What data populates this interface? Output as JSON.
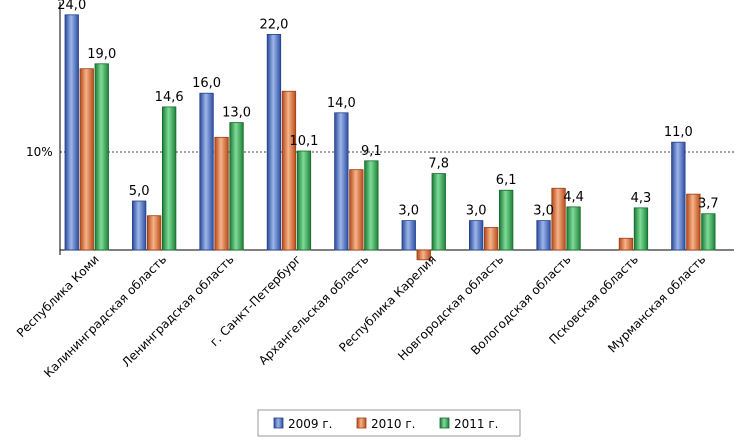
{
  "chart_data": {
    "type": "bar",
    "title": "",
    "xlabel": "",
    "ylabel": "",
    "reference_line": {
      "value": 10,
      "label": "10%"
    },
    "categories": [
      "Республика Коми",
      "Калининградская область",
      "Ленинградская область",
      "г. Санкт-Петербург",
      "Архангельская область",
      "Республика Карелия",
      "Новгородская область",
      "Вологодская область",
      "Псковская область",
      "Мурманская область"
    ],
    "series": [
      {
        "name": "2009 г.",
        "color": "#4472C4",
        "values": [
          24.0,
          5.0,
          16.0,
          22.0,
          14.0,
          3.0,
          3.0,
          3.0,
          null,
          11.0
        ],
        "labels": [
          "24,0",
          "5,0",
          "16,0",
          "22,0",
          "14,0",
          "3,0",
          "3,0",
          "3,0",
          "",
          "11,0"
        ]
      },
      {
        "name": "2010 г.",
        "color": "#C0504D",
        "values": [
          18.5,
          3.5,
          11.5,
          16.2,
          8.2,
          -1.0,
          2.3,
          6.3,
          1.2,
          5.7
        ],
        "labels": [
          "",
          "",
          "",
          "",
          "",
          "",
          "",
          "",
          "",
          ""
        ]
      },
      {
        "name": "2011 г.",
        "color": "#2E9A4A",
        "values": [
          19.0,
          14.6,
          13.0,
          10.1,
          9.1,
          7.8,
          6.1,
          4.4,
          4.3,
          3.7
        ],
        "labels": [
          "19,0",
          "14,6",
          "13,0",
          "10,1",
          "9,1",
          "7,8",
          "6,1",
          "4,4",
          "4,3",
          "3,7"
        ]
      }
    ],
    "ylim": [
      -1.5,
      25
    ],
    "grid": false,
    "legend": "bottom"
  }
}
